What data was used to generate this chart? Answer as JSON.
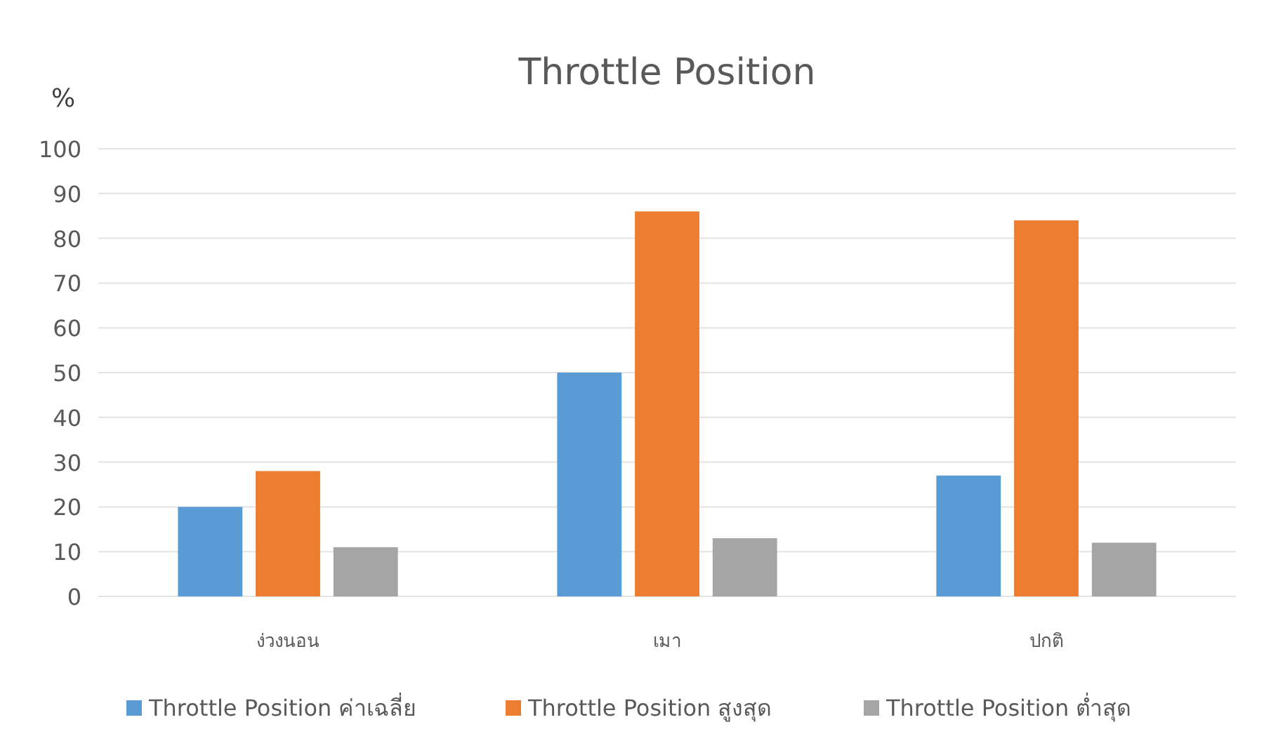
{
  "chart_data": {
    "type": "bar",
    "title": "Throttle Position",
    "ylabel": "%",
    "categories": [
      "ง่วงนอน",
      "เมา",
      "ปกติ"
    ],
    "series": [
      {
        "name": "Throttle Position ค่าเฉลี่ย",
        "color": "#5b9bd5",
        "values": [
          20,
          50,
          27
        ]
      },
      {
        "name": "Throttle Position สูงสุด",
        "color": "#ed7d31",
        "values": [
          28,
          86,
          84
        ]
      },
      {
        "name": "Throttle Position ต่ำสุด",
        "color": "#a5a5a5",
        "values": [
          11,
          13,
          12
        ]
      }
    ],
    "ylim": [
      0,
      100
    ],
    "yticks": [
      0,
      10,
      20,
      30,
      40,
      50,
      60,
      70,
      80,
      90,
      100
    ],
    "grid": "y",
    "legend": "bottom"
  }
}
